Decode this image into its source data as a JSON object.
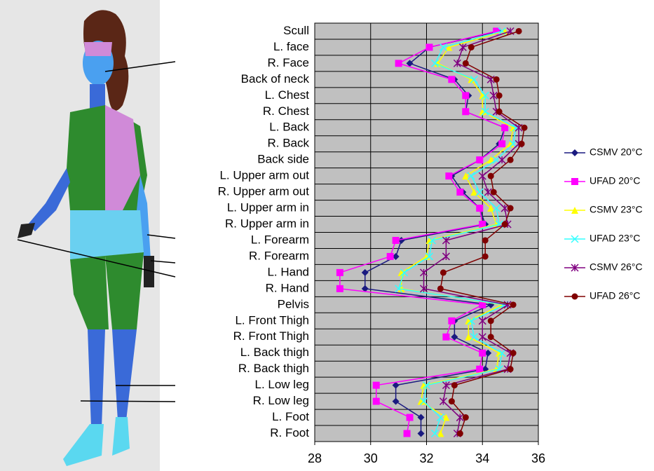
{
  "chart_data": {
    "type": "line",
    "orientation": "horizontal",
    "categories": [
      "Scull",
      "L. face",
      "R. Face",
      "Back of neck",
      "L. Chest",
      "R. Chest",
      "L. Back",
      "R. Back",
      "Back side",
      "L. Upper arm out",
      "R. Upper arm out",
      "L. Upper arm in",
      "R. Upper arm in",
      "L. Forearm",
      "R. Forearm",
      "L. Hand",
      "R. Hand",
      "Pelvis",
      "L. Front Thigh",
      "R. Front Thigh",
      "L. Back thigh",
      "R. Back thigh",
      "L. Low leg",
      "R. Low leg",
      "L. Foot",
      "R. Foot"
    ],
    "xlim": [
      28,
      36
    ],
    "xticks": [
      28,
      30,
      32,
      34,
      36
    ],
    "grid": true,
    "legend": "right",
    "series": [
      {
        "name": "CSMV 20°C",
        "color": "#1a1a80",
        "marker": "diamond",
        "values": [
          34.6,
          32.1,
          31.4,
          33.0,
          33.5,
          33.4,
          34.8,
          34.6,
          33.9,
          32.9,
          33.3,
          33.9,
          34.1,
          31.1,
          30.9,
          29.8,
          29.8,
          34.3,
          33.0,
          33.0,
          34.2,
          34.1,
          30.9,
          30.9,
          31.8,
          31.8
        ]
      },
      {
        "name": "UFAD 20°C",
        "color": "#ff00ff",
        "marker": "square",
        "values": [
          34.5,
          32.1,
          31.0,
          32.9,
          33.4,
          33.4,
          34.8,
          34.7,
          33.9,
          32.8,
          33.2,
          33.9,
          34.0,
          30.9,
          30.7,
          28.9,
          28.9,
          34.0,
          32.9,
          32.7,
          34.0,
          33.9,
          30.2,
          30.2,
          31.4,
          31.3
        ]
      },
      {
        "name": "CSMV 23°C",
        "color": "#ffff00",
        "marker": "triangle",
        "values": [
          34.8,
          32.8,
          32.4,
          33.6,
          34.0,
          34.0,
          35.1,
          35.0,
          34.3,
          33.4,
          33.7,
          34.3,
          34.5,
          32.1,
          32.0,
          31.1,
          31.1,
          34.7,
          33.5,
          33.5,
          34.6,
          34.5,
          31.9,
          31.8,
          32.7,
          32.5
        ]
      },
      {
        "name": "UFAD 23°C",
        "color": "#33ffff",
        "marker": "cross",
        "values": [
          34.7,
          32.6,
          32.3,
          33.7,
          34.1,
          34.1,
          35.2,
          35.1,
          34.5,
          33.6,
          33.9,
          34.5,
          34.6,
          32.2,
          32.1,
          31.2,
          31.0,
          34.8,
          33.6,
          33.7,
          34.7,
          34.6,
          32.0,
          31.9,
          32.5,
          32.3
        ]
      },
      {
        "name": "CSMV 26°C",
        "color": "#800080",
        "marker": "star",
        "values": [
          35.0,
          33.3,
          33.1,
          34.3,
          34.4,
          34.5,
          35.3,
          35.3,
          34.7,
          34.0,
          34.2,
          34.8,
          34.9,
          32.7,
          32.7,
          31.9,
          31.9,
          34.9,
          34.0,
          34.0,
          35.0,
          34.9,
          32.7,
          32.6,
          33.2,
          33.1
        ]
      },
      {
        "name": "UFAD 26°C",
        "color": "#800000",
        "marker": "circle",
        "values": [
          35.3,
          33.6,
          33.4,
          34.5,
          34.6,
          34.6,
          35.5,
          35.4,
          35.0,
          34.3,
          34.4,
          35.0,
          34.8,
          34.1,
          34.1,
          32.6,
          32.5,
          35.1,
          34.3,
          34.3,
          35.1,
          35.0,
          33.0,
          32.9,
          33.4,
          33.2
        ]
      }
    ]
  }
}
